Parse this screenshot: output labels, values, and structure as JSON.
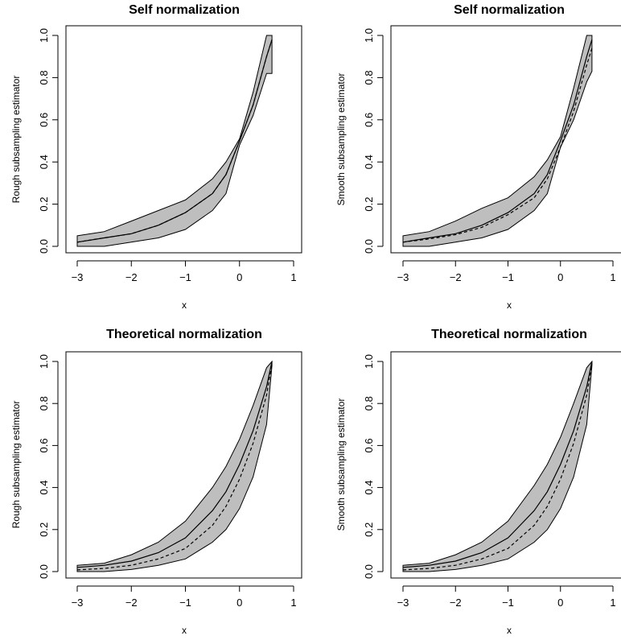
{
  "colors": {
    "band": "#bebebe",
    "line": "#000000",
    "background": "#ffffff"
  },
  "chart_data": [
    {
      "type": "area",
      "title": "Self normalization",
      "xlabel": "x",
      "ylabel": "Rough subsampling estimator",
      "xlim": [
        -3.1,
        1.1
      ],
      "ylim": [
        -0.03,
        1.03
      ],
      "xticks": [
        "−3",
        "−2",
        "−1",
        "0",
        "1"
      ],
      "yticks": [
        "0.0",
        "0.2",
        "0.4",
        "0.6",
        "0.8",
        "1.0"
      ],
      "grid": false,
      "x": [
        -3.0,
        -2.5,
        -2.0,
        -1.5,
        -1.0,
        -0.5,
        -0.25,
        0.0,
        0.25,
        0.5,
        0.6
      ],
      "band_lower": [
        0.0,
        0.0,
        0.02,
        0.04,
        0.08,
        0.17,
        0.25,
        0.48,
        0.62,
        0.82,
        0.82
      ],
      "band_upper": [
        0.05,
        0.07,
        0.12,
        0.17,
        0.22,
        0.32,
        0.4,
        0.51,
        0.73,
        1.0,
        1.0
      ],
      "series": [
        {
          "style": "solid",
          "values": [
            0.02,
            0.04,
            0.06,
            0.1,
            0.16,
            0.25,
            0.34,
            0.5,
            0.67,
            0.9,
            0.98
          ]
        },
        {
          "style": "dashed",
          "values": [
            0.02,
            0.04,
            0.06,
            0.1,
            0.16,
            0.25,
            0.34,
            0.5,
            0.67,
            0.9,
            0.98
          ]
        }
      ]
    },
    {
      "type": "area",
      "title": "Self normalization",
      "xlabel": "x",
      "ylabel": "Smooth subsampling estimator",
      "xlim": [
        -3.1,
        1.1
      ],
      "ylim": [
        -0.03,
        1.03
      ],
      "xticks": [
        "−3",
        "−2",
        "−1",
        "0",
        "1"
      ],
      "yticks": [
        "0.0",
        "0.2",
        "0.4",
        "0.6",
        "0.8",
        "1.0"
      ],
      "grid": false,
      "x": [
        -3.0,
        -2.5,
        -2.0,
        -1.5,
        -1.0,
        -0.5,
        -0.25,
        0.0,
        0.25,
        0.5,
        0.6
      ],
      "band_lower": [
        0.0,
        0.0,
        0.02,
        0.04,
        0.08,
        0.17,
        0.25,
        0.47,
        0.6,
        0.78,
        0.83
      ],
      "band_upper": [
        0.05,
        0.07,
        0.12,
        0.18,
        0.23,
        0.33,
        0.41,
        0.52,
        0.75,
        1.0,
        1.0
      ],
      "series": [
        {
          "style": "solid",
          "values": [
            0.02,
            0.04,
            0.06,
            0.1,
            0.16,
            0.25,
            0.34,
            0.5,
            0.67,
            0.9,
            0.98
          ]
        },
        {
          "style": "dashed",
          "values": [
            0.02,
            0.035,
            0.055,
            0.09,
            0.15,
            0.23,
            0.32,
            0.47,
            0.64,
            0.86,
            0.94
          ]
        }
      ]
    },
    {
      "type": "area",
      "title": "Theoretical normalization",
      "xlabel": "x",
      "ylabel": "Rough subsampling estimator",
      "xlim": [
        -3.1,
        1.1
      ],
      "ylim": [
        -0.03,
        1.03
      ],
      "xticks": [
        "−3",
        "−2",
        "−1",
        "0",
        "1"
      ],
      "yticks": [
        "0.0",
        "0.2",
        "0.4",
        "0.6",
        "0.8",
        "1.0"
      ],
      "grid": false,
      "x": [
        -3.0,
        -2.5,
        -2.0,
        -1.5,
        -1.0,
        -0.5,
        -0.25,
        0.0,
        0.25,
        0.5,
        0.6
      ],
      "band_lower": [
        0.0,
        0.0,
        0.01,
        0.03,
        0.06,
        0.14,
        0.2,
        0.3,
        0.45,
        0.7,
        0.98
      ],
      "band_upper": [
        0.03,
        0.04,
        0.08,
        0.14,
        0.24,
        0.4,
        0.5,
        0.63,
        0.79,
        0.97,
        1.0
      ],
      "series": [
        {
          "style": "solid",
          "values": [
            0.02,
            0.03,
            0.05,
            0.09,
            0.16,
            0.29,
            0.38,
            0.51,
            0.67,
            0.88,
            1.0
          ]
        },
        {
          "style": "dashed",
          "values": [
            0.008,
            0.015,
            0.03,
            0.06,
            0.11,
            0.22,
            0.31,
            0.44,
            0.61,
            0.84,
            0.99
          ]
        }
      ]
    },
    {
      "type": "area",
      "title": "Theoretical normalization",
      "xlabel": "x",
      "ylabel": "Smooth subsampling estimator",
      "xlim": [
        -3.1,
        1.1
      ],
      "ylim": [
        -0.03,
        1.03
      ],
      "xticks": [
        "−3",
        "−2",
        "−1",
        "0",
        "1"
      ],
      "yticks": [
        "0.0",
        "0.2",
        "0.4",
        "0.6",
        "0.8",
        "1.0"
      ],
      "grid": false,
      "x": [
        -3.0,
        -2.5,
        -2.0,
        -1.5,
        -1.0,
        -0.5,
        -0.25,
        0.0,
        0.25,
        0.5,
        0.6
      ],
      "band_lower": [
        0.0,
        0.0,
        0.01,
        0.03,
        0.06,
        0.14,
        0.2,
        0.3,
        0.45,
        0.7,
        0.98
      ],
      "band_upper": [
        0.03,
        0.04,
        0.08,
        0.14,
        0.24,
        0.41,
        0.51,
        0.64,
        0.8,
        0.97,
        1.0
      ],
      "series": [
        {
          "style": "solid",
          "values": [
            0.02,
            0.03,
            0.05,
            0.09,
            0.16,
            0.29,
            0.38,
            0.51,
            0.67,
            0.88,
            1.0
          ]
        },
        {
          "style": "dashed",
          "values": [
            0.008,
            0.015,
            0.03,
            0.06,
            0.11,
            0.22,
            0.31,
            0.44,
            0.61,
            0.84,
            0.99
          ]
        }
      ]
    }
  ]
}
